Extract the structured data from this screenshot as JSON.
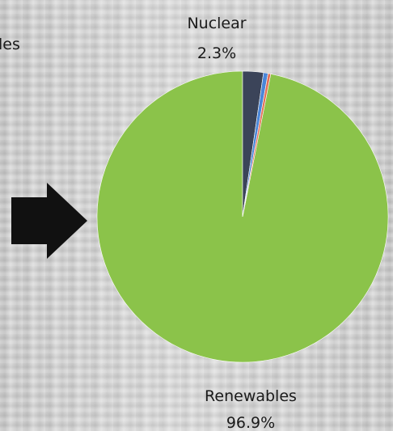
{
  "chart_data": {
    "type": "pie",
    "slices": [
      {
        "label": "Renewables",
        "value": 96.9,
        "value_label": "96.9%",
        "color": "#8BC34A"
      },
      {
        "label": "Nuclear",
        "value": 2.3,
        "value_label": "2.3%",
        "color": "#3B4459"
      },
      {
        "label": "",
        "value": 0.5,
        "value_label": "",
        "color": "#4A86D8"
      },
      {
        "label": "",
        "value": 0.3,
        "value_label": "",
        "color": "#E46F56"
      }
    ],
    "clipped_label_text": "les",
    "arrow": {
      "color": "#111111",
      "direction": "right",
      "icon": "arrow-right-icon"
    },
    "legend": "none",
    "grid": false
  }
}
